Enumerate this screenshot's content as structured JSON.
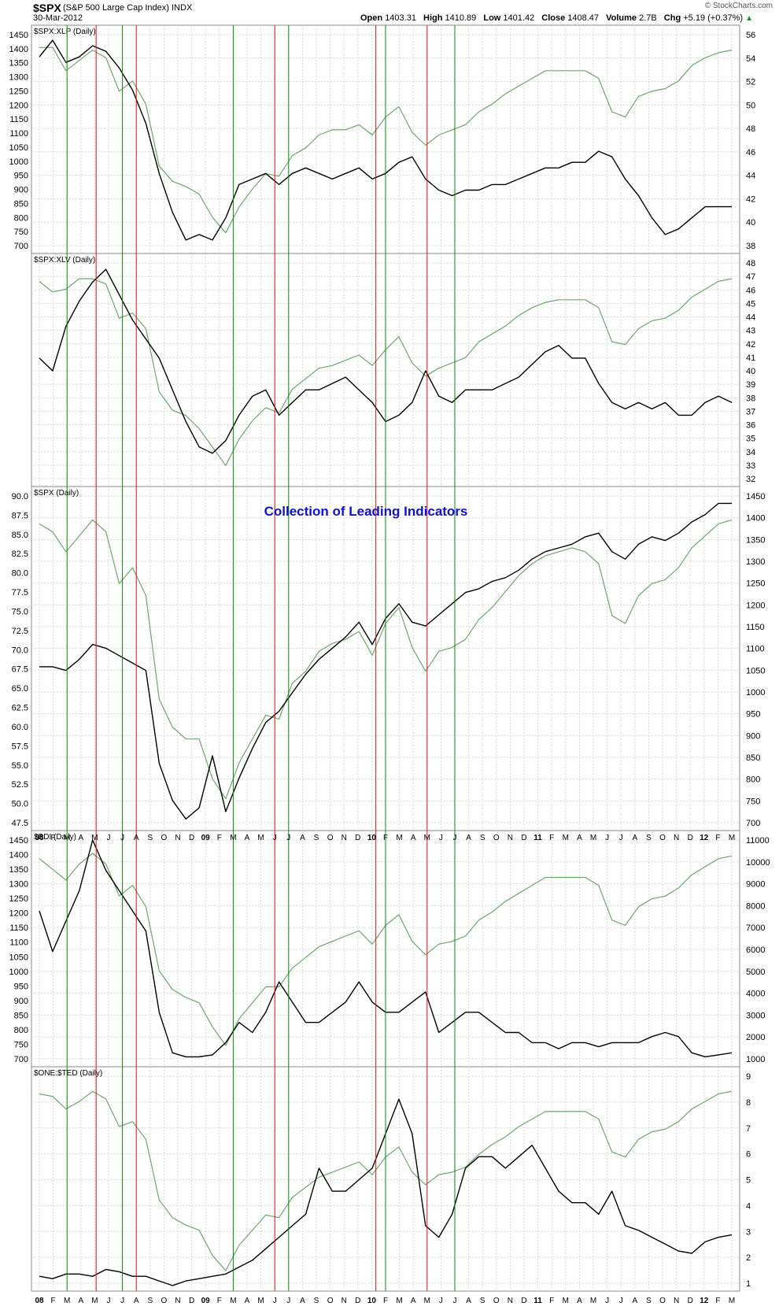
{
  "header": {
    "symbol": "$SPX",
    "description": "(S&P 500 Large Cap Index)  INDX",
    "date": "30-Mar-2012",
    "open_label": "Open",
    "open": "1403.31",
    "high_label": "High",
    "high": "1410.89",
    "low_label": "Low",
    "low": "1401.42",
    "close_label": "Close",
    "close": "1408.47",
    "volume_label": "Volume",
    "volume": "2.7B",
    "chg_label": "Chg",
    "chg": "+5.19 (+0.37%)",
    "credit": "© StockCharts.com"
  },
  "colors": {
    "black_line": "#000000",
    "green_line": "#6aa86a",
    "red_marker": "#e01010",
    "green_marker": "#0a8a0a",
    "grid": "#d8d8d8",
    "title": "#1010d0"
  },
  "chart_data": {
    "type": "line",
    "x_axis_labels": [
      "08",
      "F",
      "M",
      "A",
      "M",
      "J",
      "J",
      "A",
      "S",
      "O",
      "N",
      "D",
      "09",
      "F",
      "M",
      "A",
      "M",
      "J",
      "J",
      "A",
      "S",
      "O",
      "N",
      "D",
      "10",
      "F",
      "M",
      "A",
      "M",
      "J",
      "J",
      "A",
      "S",
      "O",
      "N",
      "D",
      "11",
      "F",
      "M",
      "A",
      "M",
      "J",
      "J",
      "A",
      "S",
      "O",
      "N",
      "D",
      "12",
      "F",
      "M"
    ],
    "bold_x_labels": [
      "08",
      "09",
      "10",
      "11",
      "12"
    ],
    "vertical_markers": {
      "green_months": [
        2,
        6,
        14,
        18,
        25,
        30
      ],
      "red_months": [
        4.1,
        7.0,
        17.0,
        24.3,
        28.0
      ]
    },
    "annotation_title": "Collection of Leading Indicators",
    "panels": [
      {
        "label": "$SPX:XLP (Daily)",
        "left_ticks": [
          "1450",
          "1400",
          "1350",
          "1300",
          "1250",
          "1200",
          "1150",
          "1100",
          "1050",
          "1000",
          "950",
          "900",
          "850",
          "800",
          "750",
          "700"
        ],
        "right_ticks": [
          "56",
          "54",
          "52",
          "50",
          "48",
          "46",
          "44",
          "42",
          "40",
          "38"
        ],
        "black_range": [
          38,
          57
        ],
        "black_series": [
          55,
          56.5,
          54.5,
          55,
          56,
          55.5,
          54,
          52,
          49,
          44.5,
          41,
          38.5,
          39,
          38.5,
          40.5,
          43.5,
          44,
          44.5,
          43.5,
          44.5,
          45,
          44.5,
          44,
          44.5,
          45,
          44,
          44.5,
          45.5,
          46,
          44,
          43,
          42.5,
          43,
          43,
          43.5,
          43.5,
          44,
          44.5,
          45,
          45,
          45.5,
          45.5,
          46.5,
          46,
          44,
          42.5,
          40.5,
          39,
          39.5,
          40.5,
          41.5,
          41.5,
          41.5
        ],
        "green_series": [
          1420,
          1420,
          1330,
          1370,
          1410,
          1380,
          1250,
          1290,
          1200,
          960,
          900,
          880,
          850,
          760,
          700,
          800,
          870,
          930,
          920,
          1000,
          1030,
          1080,
          1100,
          1100,
          1120,
          1080,
          1150,
          1190,
          1090,
          1040,
          1080,
          1100,
          1120,
          1170,
          1200,
          1240,
          1270,
          1300,
          1330,
          1330,
          1330,
          1330,
          1300,
          1170,
          1150,
          1230,
          1250,
          1260,
          1290,
          1350,
          1380,
          1400,
          1410
        ]
      },
      {
        "label": "$SPX:XLV (Daily)",
        "left_ticks": [],
        "right_ticks": [
          "48",
          "47",
          "46",
          "45",
          "44",
          "43",
          "42",
          "41",
          "40",
          "39",
          "38",
          "37",
          "36",
          "35",
          "34",
          "33",
          "32"
        ],
        "black_range": [
          31.5,
          48.5
        ],
        "black_series": [
          41,
          40,
          43.5,
          45.5,
          47,
          48,
          46,
          44,
          42.5,
          41,
          38.5,
          36,
          34,
          33.5,
          34.5,
          36.5,
          38,
          38.5,
          36.5,
          37.5,
          38.5,
          38.5,
          39,
          39.5,
          38.5,
          37.5,
          36,
          36.5,
          37.5,
          40,
          38,
          37.5,
          38.5,
          38.5,
          38.5,
          39,
          39.5,
          40.5,
          41.5,
          42,
          41,
          41,
          39,
          37.5,
          37,
          37.5,
          37,
          37.5,
          36.5,
          36.5,
          37.5,
          38,
          37.5
        ],
        "green_series": [
          1400,
          1360,
          1370,
          1410,
          1410,
          1390,
          1260,
          1280,
          1220,
          980,
          910,
          890,
          840,
          770,
          700,
          800,
          870,
          920,
          900,
          990,
          1030,
          1070,
          1080,
          1100,
          1120,
          1080,
          1140,
          1190,
          1090,
          1040,
          1070,
          1090,
          1110,
          1170,
          1200,
          1230,
          1270,
          1300,
          1320,
          1330,
          1330,
          1330,
          1300,
          1170,
          1160,
          1220,
          1250,
          1260,
          1290,
          1340,
          1370,
          1400,
          1410
        ]
      },
      {
        "label": "$SPX (Daily)",
        "left_ticks": [
          "90.0",
          "87.5",
          "85.0",
          "82.5",
          "80.0",
          "77.5",
          "75.0",
          "72.5",
          "70.0",
          "67.5",
          "65.0",
          "62.5",
          "60.0",
          "57.5",
          "55.0",
          "52.5",
          "50.0",
          "47.5"
        ],
        "right_ticks": [
          "1450",
          "1400",
          "1350",
          "1300",
          "1250",
          "1200",
          "1150",
          "1100",
          "1050",
          "1000",
          "950",
          "900",
          "850",
          "800",
          "750",
          "700"
        ],
        "black_range": [
          47,
          91
        ],
        "black_series": [
          68,
          68,
          67.5,
          69,
          71,
          70.5,
          69.5,
          68.5,
          67.5,
          55,
          50,
          47.5,
          49,
          56,
          48.5,
          53,
          57,
          60.5,
          62,
          64.5,
          67,
          69,
          70.5,
          72,
          74,
          71,
          74.5,
          76.5,
          74,
          73.5,
          75,
          76.5,
          78,
          78.5,
          79.5,
          80,
          81,
          82.5,
          83.5,
          84,
          84.5,
          85.5,
          86,
          83.5,
          82.5,
          84.5,
          85.5,
          85,
          86,
          87.5,
          88.5,
          90,
          90
        ],
        "green_series": [
          1400,
          1380,
          1330,
          1370,
          1410,
          1380,
          1250,
          1290,
          1220,
          960,
          890,
          860,
          860,
          760,
          710,
          800,
          860,
          920,
          910,
          1000,
          1030,
          1080,
          1100,
          1110,
          1130,
          1070,
          1150,
          1190,
          1090,
          1030,
          1080,
          1090,
          1110,
          1160,
          1190,
          1230,
          1270,
          1300,
          1320,
          1330,
          1340,
          1330,
          1300,
          1170,
          1150,
          1220,
          1250,
          1260,
          1290,
          1340,
          1370,
          1400,
          1410
        ]
      },
      {
        "label": "$BDI (Daily)",
        "left_ticks": [
          "1450",
          "1400",
          "1350",
          "1300",
          "1250",
          "1200",
          "1150",
          "1100",
          "1050",
          "1000",
          "950",
          "900",
          "850",
          "800",
          "750",
          "700"
        ],
        "right_ticks": [
          "11000",
          "10000",
          "9000",
          "8000",
          "7000",
          "6000",
          "5000",
          "4000",
          "3000",
          "2000",
          "1000"
        ],
        "black_range": [
          700,
          11500
        ],
        "black_series": [
          8000,
          6000,
          7500,
          9000,
          11500,
          10000,
          9000,
          8000,
          7000,
          3000,
          1000,
          800,
          800,
          900,
          1500,
          2500,
          2000,
          3000,
          4500,
          3500,
          2500,
          2500,
          3000,
          3500,
          4500,
          3500,
          3000,
          3000,
          3500,
          4000,
          2000,
          2500,
          3000,
          3000,
          2500,
          2000,
          2000,
          1500,
          1500,
          1200,
          1500,
          1500,
          1300,
          1500,
          1500,
          1500,
          1800,
          2000,
          1800,
          1000,
          800,
          900,
          1000
        ],
        "green_series": [
          1400,
          1360,
          1320,
          1380,
          1420,
          1380,
          1260,
          1300,
          1220,
          980,
          910,
          880,
          860,
          770,
          700,
          800,
          860,
          920,
          920,
          990,
          1030,
          1070,
          1090,
          1110,
          1130,
          1080,
          1150,
          1190,
          1090,
          1040,
          1080,
          1090,
          1110,
          1170,
          1200,
          1240,
          1270,
          1300,
          1330,
          1330,
          1330,
          1330,
          1300,
          1170,
          1150,
          1220,
          1250,
          1260,
          1290,
          1340,
          1370,
          1400,
          1410
        ]
      },
      {
        "label": "$ONE:$TED (Daily)",
        "left_ticks": [],
        "right_ticks": [
          "9",
          "8",
          "7",
          "6",
          "5",
          "4",
          "3",
          "2",
          "1"
        ],
        "black_range": [
          0.5,
          9.5
        ],
        "black_series": [
          0.8,
          0.7,
          0.9,
          0.9,
          0.8,
          1.1,
          1.0,
          0.8,
          0.8,
          0.6,
          0.4,
          0.6,
          0.7,
          0.8,
          0.9,
          1.2,
          1.5,
          2.0,
          2.5,
          3.0,
          3.5,
          5.5,
          4.5,
          4.5,
          5.0,
          5.5,
          7.0,
          8.5,
          7.0,
          3.0,
          2.5,
          3.5,
          5.5,
          6.0,
          6.0,
          5.5,
          6.0,
          6.5,
          5.5,
          4.5,
          4.0,
          4.0,
          3.5,
          4.5,
          3.0,
          2.8,
          2.5,
          2.2,
          1.9,
          1.8,
          2.3,
          2.5,
          2.6
        ],
        "green_series": [
          1400,
          1390,
          1340,
          1370,
          1410,
          1380,
          1270,
          1290,
          1220,
          980,
          910,
          880,
          860,
          760,
          700,
          800,
          860,
          920,
          910,
          990,
          1030,
          1070,
          1090,
          1110,
          1130,
          1080,
          1150,
          1190,
          1090,
          1040,
          1080,
          1090,
          1110,
          1160,
          1200,
          1230,
          1270,
          1300,
          1330,
          1330,
          1330,
          1330,
          1300,
          1170,
          1150,
          1220,
          1250,
          1260,
          1290,
          1340,
          1370,
          1400,
          1410
        ]
      }
    ]
  }
}
